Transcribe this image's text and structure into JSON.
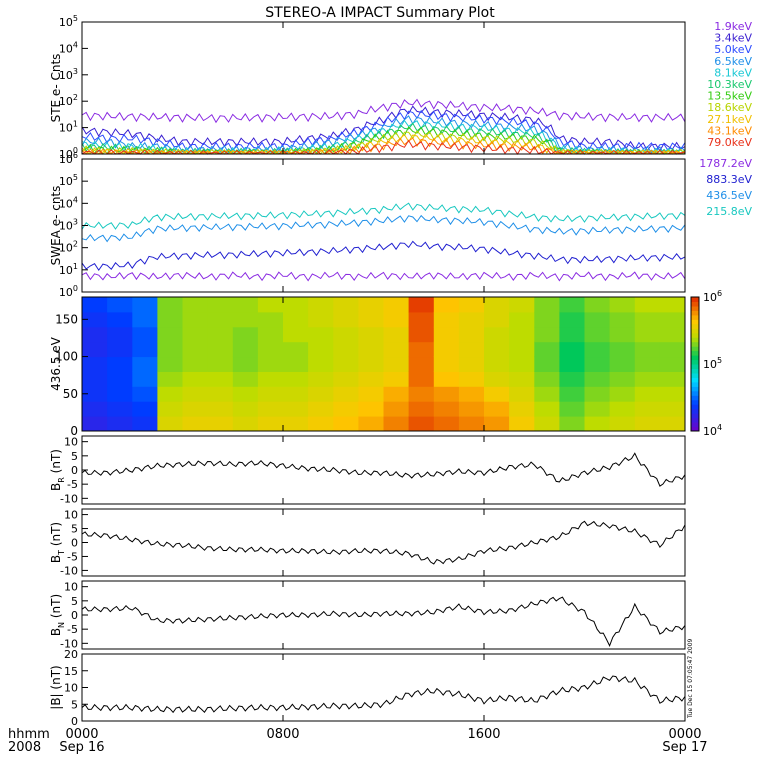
{
  "title": "STEREO-A IMPACT Summary Plot",
  "footer": {
    "left_top": "hhmm",
    "left_bottom": "2008",
    "stamp": "Tue Dec 15 07:05:47 2009"
  },
  "x_axis": {
    "range_hours": [
      0,
      24
    ],
    "ticks": [
      {
        "hour": 0,
        "line1": "0000",
        "line2": "Sep 16"
      },
      {
        "hour": 8,
        "line1": "0800",
        "line2": ""
      },
      {
        "hour": 16,
        "line1": "1600",
        "line2": ""
      },
      {
        "hour": 24,
        "line1": "0000",
        "line2": "Sep 17"
      }
    ]
  },
  "chart_data": [
    {
      "id": "ste",
      "type": "line",
      "ylabel": "STE e- Cnts",
      "yscale": "log",
      "ylim_exp": [
        0,
        5
      ],
      "tick_exponents": [
        0,
        1,
        2,
        3,
        4,
        5
      ],
      "x_hours": [
        0,
        1,
        2,
        3,
        4,
        5,
        6,
        7,
        8,
        9,
        10,
        11,
        12,
        13,
        14,
        15,
        16,
        17,
        18,
        19,
        20,
        21,
        22,
        23,
        24
      ],
      "series": [
        {
          "name": "1.9keV",
          "color": "#8a2be2",
          "values": [
            30,
            28,
            27,
            26,
            25,
            24,
            24,
            25,
            26,
            27,
            28,
            35,
            60,
            90,
            80,
            70,
            60,
            55,
            45,
            30,
            27,
            26,
            25,
            25,
            25
          ]
        },
        {
          "name": "3.4keV",
          "color": "#3a1fd0",
          "values": [
            8,
            7,
            6,
            4,
            3,
            3,
            3,
            3,
            3,
            4,
            5,
            9,
            20,
            50,
            40,
            35,
            30,
            25,
            20,
            4,
            3,
            3,
            2,
            2,
            2
          ]
        },
        {
          "name": "5.0keV",
          "color": "#2c4bff",
          "values": [
            5,
            4,
            4,
            3,
            2,
            2,
            2,
            2,
            2,
            3,
            4,
            7,
            15,
            35,
            30,
            25,
            22,
            18,
            14,
            3,
            2,
            2,
            2,
            2,
            2
          ]
        },
        {
          "name": "6.5keV",
          "color": "#1f8fe8",
          "values": [
            3,
            3,
            2,
            2,
            1.5,
            1.5,
            1.5,
            1.5,
            1.6,
            2,
            3,
            5,
            10,
            22,
            18,
            15,
            13,
            11,
            9,
            2,
            1.5,
            1.5,
            1.4,
            1.4,
            1.4
          ]
        },
        {
          "name": "8.1keV",
          "color": "#19c8d4",
          "values": [
            2.5,
            2,
            2,
            1.6,
            1.3,
            1.3,
            1.3,
            1.3,
            1.4,
            1.6,
            2,
            4,
            8,
            15,
            13,
            11,
            10,
            8,
            7,
            1.6,
            1.3,
            1.3,
            1.2,
            1.2,
            1.2
          ]
        },
        {
          "name": "10.3keV",
          "color": "#19c86e",
          "values": [
            2,
            1.8,
            1.6,
            1.4,
            1.2,
            1.2,
            1.2,
            1.2,
            1.2,
            1.4,
            1.7,
            3,
            6,
            11,
            9,
            8,
            7,
            6,
            5,
            1.4,
            1.2,
            1.2,
            1.1,
            1.1,
            1.1
          ]
        },
        {
          "name": "13.5keV",
          "color": "#33cc11",
          "values": [
            1.7,
            1.5,
            1.4,
            1.3,
            1.1,
            1.1,
            1.1,
            1.1,
            1.1,
            1.3,
            1.5,
            2.5,
            5,
            8,
            7,
            6,
            5,
            4.5,
            4,
            1.3,
            1.1,
            1.1,
            1.1,
            1.1,
            1.1
          ]
        },
        {
          "name": "18.6keV",
          "color": "#b8d400",
          "values": [
            1.5,
            1.3,
            1.3,
            1.2,
            1.1,
            1.1,
            1.1,
            1.1,
            1.1,
            1.2,
            1.4,
            2,
            4,
            6,
            5,
            4.5,
            4,
            3.5,
            3,
            1.2,
            1.1,
            1.1,
            1.1,
            1.1,
            1.1
          ]
        },
        {
          "name": "27.1keV",
          "color": "#f0c000",
          "values": [
            1.3,
            1.2,
            1.2,
            1.1,
            1.05,
            1.05,
            1.05,
            1.05,
            1.05,
            1.1,
            1.3,
            1.8,
            3,
            4.5,
            4,
            3.5,
            3,
            2.6,
            2.2,
            1.1,
            1.05,
            1.05,
            1.05,
            1.05,
            1.05
          ]
        },
        {
          "name": "43.1keV",
          "color": "#ff8c00",
          "values": [
            1.2,
            1.1,
            1.1,
            1.05,
            1.02,
            1.02,
            1.02,
            1.02,
            1.02,
            1.05,
            1.2,
            1.5,
            2.2,
            3.2,
            2.8,
            2.5,
            2.2,
            2,
            1.8,
            1.05,
            1.02,
            1.02,
            1.02,
            1.02,
            1.02
          ]
        },
        {
          "name": "79.0keV",
          "color": "#e8301a",
          "values": [
            1.1,
            1.05,
            1.05,
            1.02,
            1,
            1,
            1,
            1,
            1,
            1.02,
            1.1,
            1.3,
            1.8,
            2.4,
            2.1,
            1.9,
            1.7,
            1.5,
            1.4,
            1.02,
            1,
            1,
            1,
            1,
            1
          ]
        }
      ]
    },
    {
      "id": "swea",
      "type": "line",
      "ylabel": "SWEA e- cnts",
      "yscale": "log",
      "ylim_exp": [
        0,
        6
      ],
      "tick_exponents": [
        0,
        1,
        2,
        3,
        4,
        5,
        6
      ],
      "x_hours": [
        0,
        1,
        2,
        3,
        4,
        5,
        6,
        7,
        8,
        9,
        10,
        11,
        12,
        13,
        14,
        15,
        16,
        17,
        18,
        19,
        20,
        21,
        22,
        23,
        24
      ],
      "series": [
        {
          "name": "1787.2eV",
          "color": "#8a2be2",
          "values": [
            6,
            5,
            6,
            5,
            6,
            5,
            6,
            5,
            6,
            5,
            6,
            5,
            6,
            5,
            6,
            5,
            6,
            5,
            6,
            5,
            6,
            5,
            6,
            5,
            6
          ]
        },
        {
          "name": "883.3eV",
          "color": "#2020d0",
          "values": [
            15,
            15,
            17,
            40,
            45,
            48,
            50,
            55,
            60,
            65,
            75,
            90,
            110,
            150,
            120,
            110,
            90,
            60,
            45,
            30,
            30,
            32,
            35,
            38,
            40
          ]
        },
        {
          "name": "436.5eV",
          "color": "#1f8fe8",
          "values": [
            280,
            290,
            310,
            750,
            800,
            850,
            900,
            950,
            1000,
            1100,
            1200,
            1400,
            1700,
            2300,
            1900,
            1700,
            1500,
            1000,
            700,
            550,
            600,
            650,
            700,
            750,
            800
          ]
        },
        {
          "name": "215.8eV",
          "color": "#19c8c0",
          "values": [
            1000,
            1050,
            1100,
            2500,
            2600,
            2700,
            2800,
            2900,
            3100,
            3400,
            3800,
            4500,
            5500,
            8000,
            6500,
            5800,
            5200,
            3500,
            2500,
            2000,
            2200,
            2400,
            2600,
            2800,
            3000
          ]
        }
      ]
    },
    {
      "id": "pad",
      "type": "heatmap",
      "ylabel": "436.5 eV",
      "ylim": [
        0,
        180
      ],
      "yticks": [
        0,
        50,
        100,
        150
      ],
      "colorbar_tick_exponents": [
        4,
        5,
        6
      ],
      "colorbar_range_exp": [
        4,
        6
      ],
      "pitch_angle_bins": [
        10,
        30,
        50,
        70,
        90,
        110,
        130,
        150,
        170
      ],
      "x_hours": [
        0,
        1,
        2,
        3,
        4,
        5,
        6,
        7,
        8,
        9,
        10,
        11,
        12,
        13,
        14,
        15,
        16,
        17,
        18,
        19,
        20,
        21,
        22,
        23,
        24
      ],
      "log_counts_by_hour_low_to_high_pitch": [
        [
          4.25,
          4.3,
          4.35,
          4.35,
          4.35,
          4.3,
          4.3,
          4.35,
          4.4
        ],
        [
          4.3,
          4.35,
          4.4,
          4.4,
          4.4,
          4.35,
          4.35,
          4.4,
          4.45
        ],
        [
          4.35,
          4.4,
          4.45,
          4.5,
          4.5,
          4.45,
          4.45,
          4.5,
          4.5
        ],
        [
          5.5,
          5.45,
          5.4,
          5.35,
          5.3,
          5.3,
          5.3,
          5.3,
          5.3
        ],
        [
          5.55,
          5.5,
          5.45,
          5.4,
          5.35,
          5.35,
          5.35,
          5.35,
          5.35
        ],
        [
          5.55,
          5.5,
          5.45,
          5.4,
          5.35,
          5.35,
          5.35,
          5.35,
          5.35
        ],
        [
          5.5,
          5.45,
          5.4,
          5.35,
          5.3,
          5.3,
          5.3,
          5.35,
          5.35
        ],
        [
          5.55,
          5.5,
          5.45,
          5.4,
          5.35,
          5.35,
          5.35,
          5.35,
          5.4
        ],
        [
          5.55,
          5.5,
          5.45,
          5.4,
          5.35,
          5.35,
          5.4,
          5.4,
          5.4
        ],
        [
          5.6,
          5.55,
          5.5,
          5.45,
          5.4,
          5.4,
          5.4,
          5.45,
          5.45
        ],
        [
          5.65,
          5.6,
          5.55,
          5.5,
          5.45,
          5.45,
          5.45,
          5.5,
          5.5
        ],
        [
          5.7,
          5.65,
          5.6,
          5.55,
          5.5,
          5.5,
          5.5,
          5.55,
          5.55
        ],
        [
          5.8,
          5.75,
          5.7,
          5.6,
          5.55,
          5.55,
          5.55,
          5.6,
          5.6
        ],
        [
          5.9,
          5.85,
          5.8,
          5.85,
          5.85,
          5.85,
          5.9,
          5.9,
          5.95
        ],
        [
          5.85,
          5.8,
          5.75,
          5.65,
          5.6,
          5.6,
          5.6,
          5.6,
          5.65
        ],
        [
          5.8,
          5.75,
          5.7,
          5.6,
          5.55,
          5.55,
          5.55,
          5.55,
          5.6
        ],
        [
          5.75,
          5.7,
          5.6,
          5.5,
          5.45,
          5.45,
          5.45,
          5.5,
          5.5
        ],
        [
          5.6,
          5.55,
          5.5,
          5.45,
          5.4,
          5.4,
          5.4,
          5.4,
          5.45
        ],
        [
          5.45,
          5.4,
          5.35,
          5.3,
          5.25,
          5.25,
          5.3,
          5.3,
          5.3
        ],
        [
          5.3,
          5.25,
          5.2,
          5.15,
          5.1,
          5.1,
          5.15,
          5.15,
          5.2
        ],
        [
          5.4,
          5.35,
          5.3,
          5.25,
          5.2,
          5.2,
          5.25,
          5.25,
          5.3
        ],
        [
          5.45,
          5.4,
          5.35,
          5.3,
          5.25,
          5.25,
          5.3,
          5.3,
          5.35
        ],
        [
          5.5,
          5.45,
          5.4,
          5.35,
          5.3,
          5.3,
          5.35,
          5.35,
          5.4
        ],
        [
          5.5,
          5.45,
          5.4,
          5.35,
          5.3,
          5.3,
          5.35,
          5.35,
          5.4
        ],
        [
          5.55,
          5.5,
          5.45,
          5.4,
          5.35,
          5.35,
          5.4,
          5.4,
          5.45
        ]
      ]
    },
    {
      "id": "br",
      "type": "line",
      "ylabel": "B",
      "ylabel_sub": "R",
      "ylabel_unit": " (nT)",
      "ylim": [
        -12,
        12
      ],
      "yticks": [
        -10,
        -5,
        0,
        5,
        10
      ],
      "x_hours": [
        0,
        1,
        2,
        3,
        4,
        5,
        6,
        7,
        8,
        9,
        10,
        11,
        12,
        13,
        14,
        15,
        16,
        17,
        18,
        19,
        20,
        21,
        22,
        23,
        24
      ],
      "values": [
        -1,
        -1,
        0,
        1.5,
        2,
        2.5,
        2,
        2.5,
        1.5,
        0.5,
        0,
        -1,
        -1,
        -2,
        -1.5,
        -0.5,
        -1,
        1,
        2,
        -4,
        -1,
        1,
        5,
        -5,
        -2
      ]
    },
    {
      "id": "bt",
      "type": "line",
      "ylabel": "B",
      "ylabel_sub": "T",
      "ylabel_unit": " (nT)",
      "ylim": [
        -12,
        12
      ],
      "yticks": [
        -10,
        -5,
        0,
        5,
        10
      ],
      "x_hours": [
        0,
        1,
        2,
        3,
        4,
        5,
        6,
        7,
        8,
        9,
        10,
        11,
        12,
        13,
        14,
        15,
        16,
        17,
        18,
        19,
        20,
        21,
        22,
        23,
        24
      ],
      "values": [
        3,
        2.5,
        1,
        -0.5,
        -1,
        -2,
        -2.5,
        -2.5,
        -3,
        -3,
        -3.5,
        -3,
        -3,
        -4,
        -7,
        -6,
        -3,
        -2,
        0,
        2,
        7,
        6,
        4,
        -1,
        6
      ]
    },
    {
      "id": "bn",
      "type": "line",
      "ylabel": "B",
      "ylabel_sub": "N",
      "ylabel_unit": " (nT)",
      "ylim": [
        -12,
        12
      ],
      "yticks": [
        -10,
        -5,
        0,
        5,
        10
      ],
      "x_hours": [
        0,
        1,
        2,
        3,
        4,
        5,
        6,
        7,
        8,
        9,
        10,
        11,
        12,
        13,
        14,
        15,
        16,
        17,
        18,
        19,
        20,
        21,
        22,
        23,
        24
      ],
      "values": [
        2,
        2,
        2.5,
        -2,
        -2,
        -1.5,
        -1,
        -0.5,
        0,
        0,
        0.5,
        0,
        0.5,
        0.5,
        1,
        3,
        1,
        1.5,
        4,
        6,
        1,
        -10,
        3,
        -6,
        -4
      ]
    },
    {
      "id": "bmag",
      "type": "line",
      "ylabel": "|B|",
      "ylabel_unit": " (nT)",
      "ylim": [
        0,
        20
      ],
      "yticks": [
        0,
        5,
        10,
        15,
        20
      ],
      "x_hours": [
        0,
        1,
        2,
        3,
        4,
        5,
        6,
        7,
        8,
        9,
        10,
        11,
        12,
        13,
        14,
        15,
        16,
        17,
        18,
        19,
        20,
        21,
        22,
        23,
        24
      ],
      "values": [
        4,
        4,
        4,
        3.5,
        3.5,
        3.5,
        3.8,
        4,
        4,
        4.2,
        4.5,
        4.5,
        5,
        8,
        9,
        8,
        6,
        7,
        6,
        9,
        10,
        13,
        12,
        6,
        7
      ]
    }
  ]
}
